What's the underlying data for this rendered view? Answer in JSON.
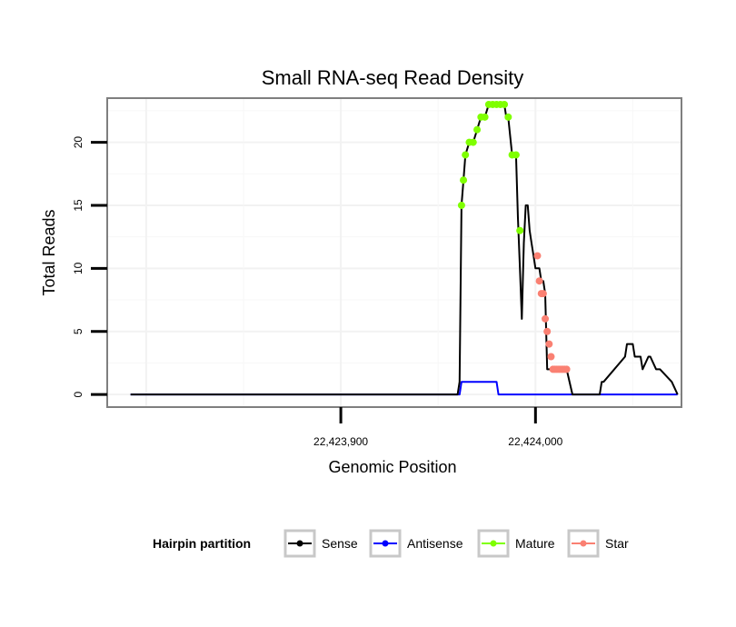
{
  "chart_data": {
    "type": "line",
    "title": "Small RNA-seq Read Density",
    "xlabel": "Genomic Position",
    "ylabel": "Total Reads",
    "xlim": [
      22423780,
      22424075
    ],
    "ylim": [
      -1,
      23.5
    ],
    "x_ticks": [
      22423900,
      22424000
    ],
    "x_tick_labels": [
      "22,423,900",
      "22,424,000"
    ],
    "y_ticks": [
      0,
      5,
      10,
      15,
      20
    ],
    "y_tick_labels": [
      "0",
      "5",
      "10",
      "15",
      "20"
    ],
    "grid": true,
    "legend": {
      "title": "Hairpin partition",
      "position": "bottom",
      "entries": [
        {
          "name": "Sense",
          "color": "#000000"
        },
        {
          "name": "Antisense",
          "color": "#0000ff"
        },
        {
          "name": "Mature",
          "color": "#7fff00"
        },
        {
          "name": "Star",
          "color": "#fa8072"
        }
      ]
    },
    "series": [
      {
        "name": "Sense",
        "color": "#000000",
        "x": [
          22423792,
          22423915,
          22423960,
          22423961,
          22423962,
          22423963,
          22423964,
          22423966,
          22423968,
          22423970,
          22423972,
          22423974,
          22423976,
          22423977,
          22423978,
          22423980,
          22423982,
          22423984,
          22423985,
          22423986,
          22423988,
          22423990,
          22423991,
          22423992,
          22423993,
          22423994,
          22423995,
          22423996,
          22423997,
          22423998,
          22423999,
          22424000,
          22424001,
          22424002,
          22424003,
          22424004,
          22424005,
          22424006,
          22424016,
          22424019,
          22424033,
          22424034,
          22424035,
          22424046,
          22424047,
          22424050,
          22424051,
          22424054,
          22424055,
          22424058,
          22424059,
          22424062,
          22424063,
          22424064,
          22424070,
          22424073
        ],
        "y": [
          0,
          0,
          0,
          1,
          15,
          17,
          19,
          20,
          20,
          21,
          22,
          22,
          23,
          23,
          23,
          23,
          23,
          23,
          22,
          22,
          19,
          19,
          14,
          10,
          6,
          12,
          15,
          15,
          13,
          12,
          11,
          10,
          10,
          10,
          9,
          9,
          8,
          2,
          2,
          0,
          0,
          1,
          1,
          3,
          4,
          4,
          3,
          3,
          2,
          3,
          3,
          2,
          2,
          2,
          1,
          0
        ]
      },
      {
        "name": "Antisense",
        "color": "#0000ff",
        "x": [
          22423792,
          22423961,
          22423962,
          22423980,
          22423981,
          22424073
        ],
        "y": [
          0,
          0,
          1,
          1,
          0,
          0
        ]
      },
      {
        "name": "Mature",
        "color": "#7fff00",
        "x": [
          22423962,
          22423963,
          22423964,
          22423966,
          22423968,
          22423970,
          22423972,
          22423974,
          22423976,
          22423978,
          22423980,
          22423982,
          22423984,
          22423986,
          22423988,
          22423990,
          22423992
        ],
        "y": [
          15,
          17,
          19,
          20,
          20,
          21,
          22,
          22,
          23,
          23,
          23,
          23,
          23,
          22,
          19,
          19,
          13
        ]
      },
      {
        "name": "Star",
        "color": "#fa8072",
        "x": [
          22424001,
          22424002,
          22424003,
          22424004,
          22424005,
          22424006,
          22424007,
          22424008,
          22424009,
          22424010,
          22424011,
          22424012,
          22424013,
          22424014,
          22424015,
          22424016
        ],
        "y": [
          11,
          9,
          8,
          8,
          6,
          5,
          4,
          3,
          2,
          2,
          2,
          2,
          2,
          2,
          2,
          2
        ]
      }
    ]
  }
}
